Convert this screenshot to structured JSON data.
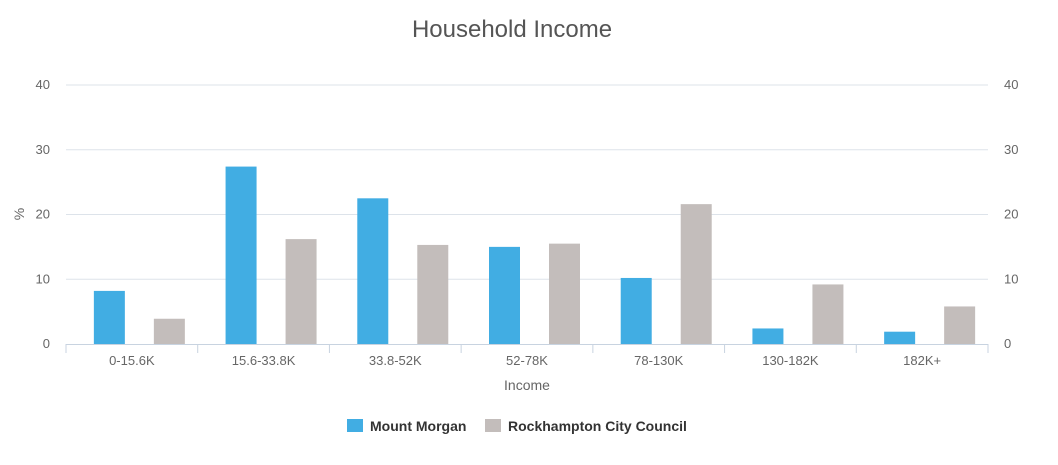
{
  "chart_data": {
    "type": "bar",
    "title": "Household Income",
    "xlabel": "Income",
    "ylabel": "%",
    "ylim": [
      0,
      40
    ],
    "yticks": [
      0,
      10,
      20,
      30,
      40
    ],
    "right_axis": true,
    "grid": true,
    "legend_position": "bottom-center",
    "categories": [
      "0-15.6K",
      "15.6-33.8K",
      "33.8-52K",
      "52-78K",
      "78-130K",
      "130-182K",
      "182K+"
    ],
    "series": [
      {
        "name": "Mount Morgan",
        "color": "#41ade3",
        "values": [
          8.2,
          27.4,
          22.5,
          15.0,
          10.2,
          2.4,
          1.9
        ]
      },
      {
        "name": "Rockhampton City Council",
        "color": "#c3bdbb",
        "values": [
          3.9,
          16.2,
          15.3,
          15.5,
          21.6,
          9.2,
          5.8
        ]
      }
    ]
  }
}
